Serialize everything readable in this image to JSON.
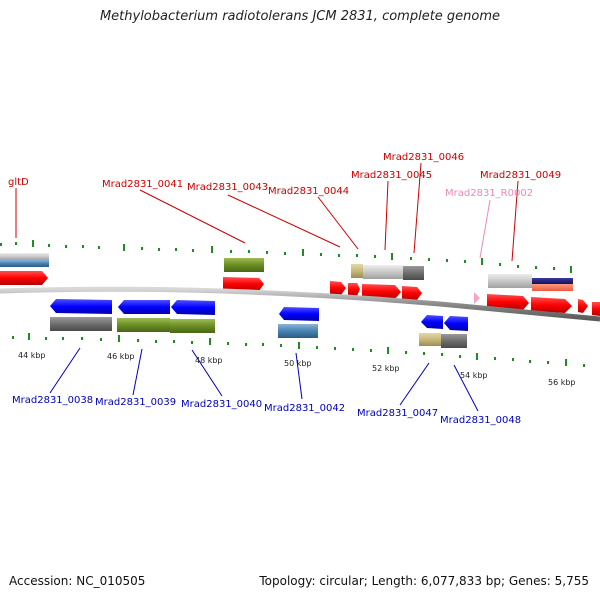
{
  "title": "Methylobacterium radiotolerans JCM 2831, complete genome",
  "footer": {
    "accession": "Accession: NC_010505",
    "summary": "Topology: circular; Length: 6,077,833 bp; Genes: 5,755"
  },
  "colors": {
    "forward_label": "#cc0000",
    "reverse_label": "#0000bb",
    "rna_label": "#e88bbd",
    "tick": "#228b22",
    "backbone": "#8c8c8c"
  },
  "ticks": [
    {
      "text": "44 kbp"
    },
    {
      "text": "46 kbp"
    },
    {
      "text": "48 kbp"
    },
    {
      "text": "50 kbp"
    },
    {
      "text": "52 kbp"
    },
    {
      "text": "54 kbp"
    },
    {
      "text": "56 kbp"
    }
  ],
  "top_labels": [
    {
      "text": "gltD",
      "type": "forward"
    },
    {
      "text": "Mrad2831_0041",
      "type": "forward"
    },
    {
      "text": "Mrad2831_0043",
      "type": "forward"
    },
    {
      "text": "Mrad2831_0044",
      "type": "forward"
    },
    {
      "text": "Mrad2831_0045",
      "type": "forward"
    },
    {
      "text": "Mrad2831_0046",
      "type": "forward"
    },
    {
      "text": "Mrad2831_R0002",
      "type": "rna"
    },
    {
      "text": "Mrad2831_0049",
      "type": "forward"
    }
  ],
  "bottom_labels": [
    {
      "text": "Mrad2831_0038"
    },
    {
      "text": "Mrad2831_0039"
    },
    {
      "text": "Mrad2831_0040"
    },
    {
      "text": "Mrad2831_0042"
    },
    {
      "text": "Mrad2831_0047"
    },
    {
      "text": "Mrad2831_0048"
    }
  ]
}
